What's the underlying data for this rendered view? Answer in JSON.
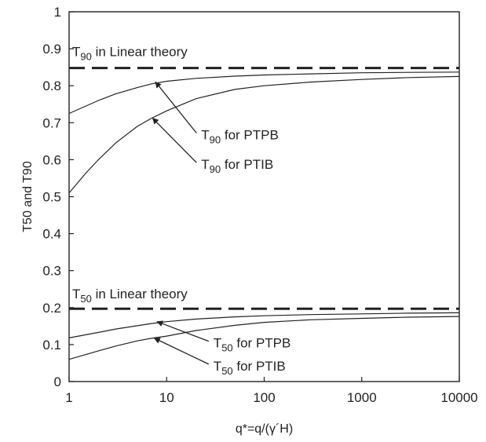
{
  "chart_data": {
    "type": "line",
    "xscale": "log",
    "xlim": [
      1,
      10000
    ],
    "ylim": [
      0,
      1
    ],
    "xticks": [
      1,
      10,
      100,
      1000,
      10000
    ],
    "xtick_labels": [
      "1",
      "10",
      "100",
      "1000",
      "10000"
    ],
    "yticks": [
      0,
      0.1,
      0.2,
      0.3,
      0.4,
      0.5,
      0.6,
      0.7,
      0.8,
      0.9,
      1
    ],
    "ytick_labels": [
      "0",
      "0.1",
      "0.2",
      "0.3",
      "0.4",
      "0.5",
      "0.6",
      "0.7",
      "0.8",
      "0.9",
      "1"
    ],
    "xlabel": "q*=q/(γ´H)",
    "ylabel": "T50 and T90",
    "series": [
      {
        "name": "T90 for PTPB",
        "style": "solid",
        "x": [
          1,
          2,
          3,
          5,
          7,
          10,
          20,
          50,
          100,
          300,
          1000,
          3000,
          10000
        ],
        "y": [
          0.725,
          0.76,
          0.778,
          0.795,
          0.805,
          0.812,
          0.82,
          0.826,
          0.829,
          0.832,
          0.835,
          0.836,
          0.837
        ]
      },
      {
        "name": "T90 for PTIB",
        "style": "solid",
        "x": [
          1,
          1.5,
          2,
          3,
          5,
          7,
          10,
          20,
          50,
          100,
          300,
          1000,
          3000,
          10000
        ],
        "y": [
          0.51,
          0.565,
          0.6,
          0.645,
          0.69,
          0.712,
          0.732,
          0.765,
          0.79,
          0.8,
          0.81,
          0.817,
          0.822,
          0.825
        ]
      },
      {
        "name": "T90 in Linear theory",
        "style": "dashed",
        "x": [
          1,
          10000
        ],
        "y": [
          0.848,
          0.848
        ]
      },
      {
        "name": "T50 for PTPB",
        "style": "solid",
        "x": [
          1,
          2,
          3,
          5,
          7,
          10,
          20,
          50,
          100,
          300,
          1000,
          3000,
          10000
        ],
        "y": [
          0.118,
          0.133,
          0.142,
          0.151,
          0.157,
          0.162,
          0.169,
          0.175,
          0.178,
          0.181,
          0.183,
          0.185,
          0.186
        ]
      },
      {
        "name": "T50 for PTIB",
        "style": "solid",
        "x": [
          1,
          2,
          3,
          5,
          7,
          10,
          20,
          50,
          100,
          300,
          1000,
          3000,
          10000
        ],
        "y": [
          0.06,
          0.083,
          0.096,
          0.11,
          0.117,
          0.123,
          0.138,
          0.152,
          0.16,
          0.167,
          0.171,
          0.174,
          0.176
        ]
      },
      {
        "name": "T50 in Linear theory",
        "style": "dashed",
        "x": [
          1,
          10000
        ],
        "y": [
          0.197,
          0.197
        ]
      }
    ],
    "annotations": [
      {
        "id": "t90-linear",
        "main": "T",
        "sub": "90",
        "rest": " in Linear theory",
        "x": 1.0,
        "y": 0.88
      },
      {
        "id": "t90-ptpb",
        "main": "T",
        "sub": "90",
        "rest": " for PTPB",
        "x": 21,
        "y": 0.655,
        "arrow_to": [
          7.7,
          0.81
        ]
      },
      {
        "id": "t90-ptib",
        "main": "T",
        "sub": "90",
        "rest": " for PTIB",
        "x": 21,
        "y": 0.575,
        "arrow_to": [
          7.2,
          0.712
        ]
      },
      {
        "id": "t50-linear",
        "main": "T",
        "sub": "50",
        "rest": " in Linear theory",
        "x": 1.0,
        "y": 0.225
      },
      {
        "id": "t50-ptpb",
        "main": "T",
        "sub": "50",
        "rest": " for PTPB",
        "x": 28,
        "y": 0.092,
        "arrow_to": [
          8.0,
          0.162
        ]
      },
      {
        "id": "t50-ptib",
        "main": "T",
        "sub": "50",
        "rest": " for PTIB",
        "x": 28,
        "y": 0.03,
        "arrow_to": [
          7.5,
          0.117
        ]
      }
    ],
    "grid": false,
    "legend": "none"
  }
}
